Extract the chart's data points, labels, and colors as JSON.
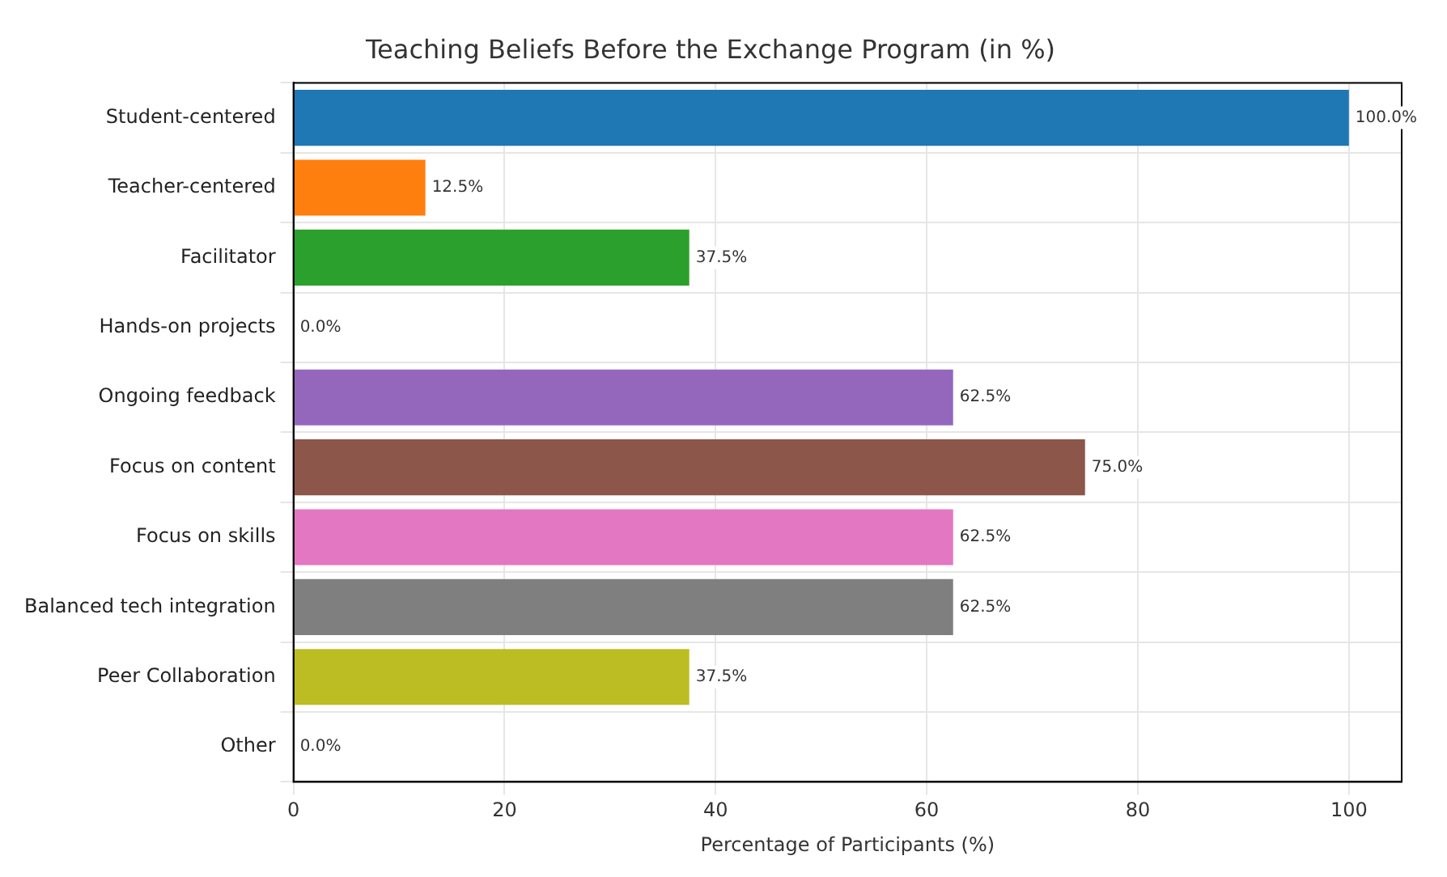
{
  "chart_data": {
    "type": "bar",
    "orientation": "horizontal",
    "title": "Teaching Beliefs Before the Exchange Program (in %)",
    "xlabel": "Percentage of Participants (%)",
    "categories": [
      "Student-centered",
      "Teacher-centered",
      "Facilitator",
      "Hands-on projects",
      "Ongoing feedback",
      "Focus on content",
      "Focus on skills",
      "Balanced tech integration",
      "Peer Collaboration",
      "Other"
    ],
    "values": [
      100,
      12.5,
      37.5,
      0,
      62.5,
      75,
      62.5,
      62.5,
      37.5,
      0
    ],
    "colors": [
      "#1f77b4",
      "#ff7f0e",
      "#2ca02c",
      "#d62728",
      "#9467bd",
      "#8c564b",
      "#e377c2",
      "#7f7f7f",
      "#bcbd22",
      "#17becf"
    ],
    "value_labels": [
      "100.0%",
      "12.5%",
      "37.5%",
      "0.0%",
      "62.5%",
      "75.0%",
      "62.5%",
      "62.5%",
      "37.5%",
      "0.0%"
    ],
    "xlim": [
      0,
      105
    ],
    "xticks": [
      0,
      20,
      40,
      60,
      80,
      100
    ],
    "grid": true,
    "legend": false
  }
}
